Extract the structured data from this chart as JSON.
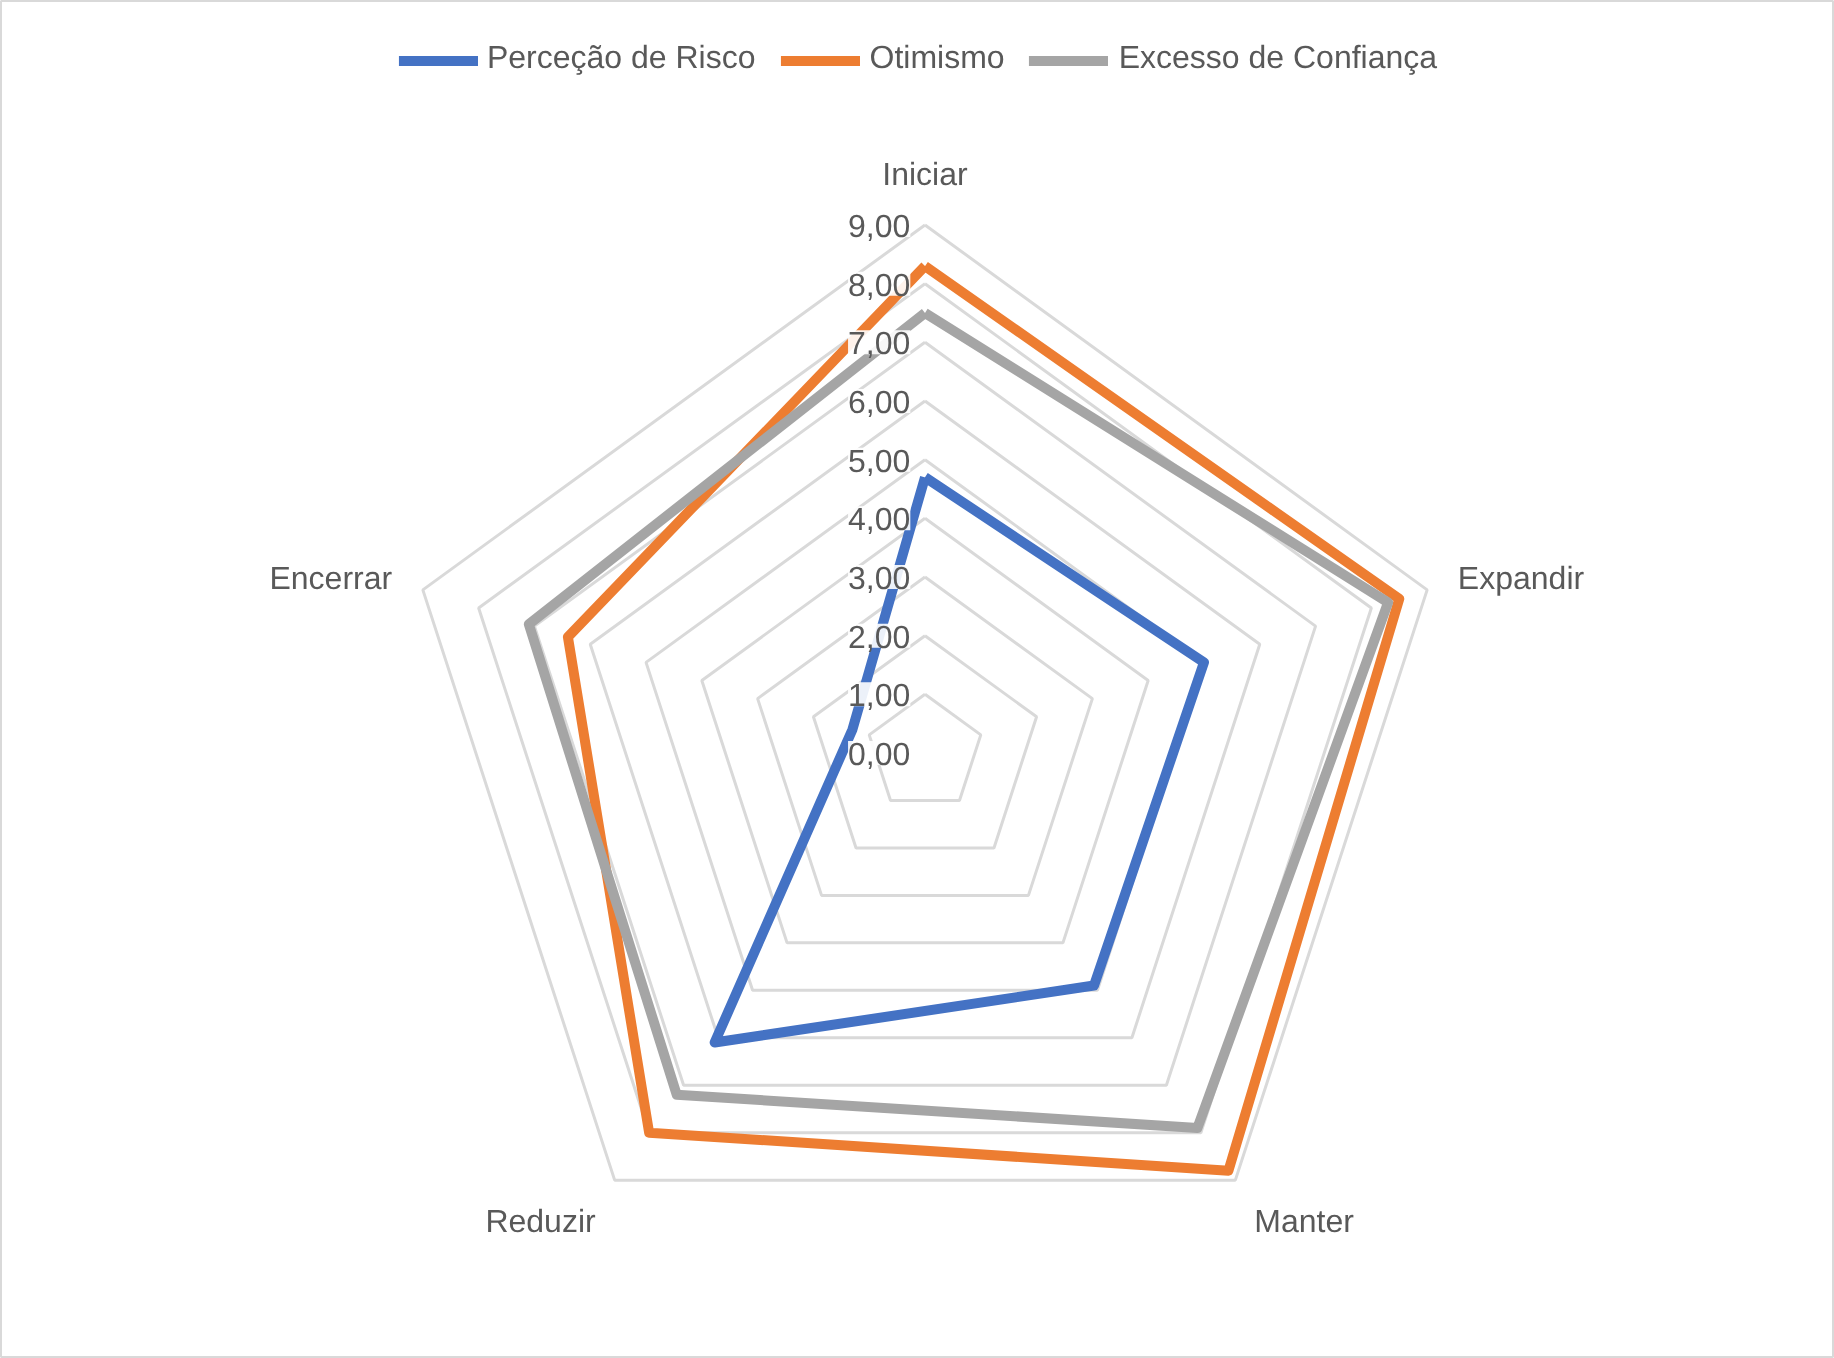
{
  "chart_data": {
    "type": "radar",
    "categories": [
      "Iniciar",
      "Expandir",
      "Manter",
      "Reduzir",
      "Encerrar"
    ],
    "series": [
      {
        "name": "Perceção de Risco",
        "color": "#4472c4",
        "values": [
          4.7,
          5.0,
          4.9,
          6.1,
          1.3
        ]
      },
      {
        "name": "Otimismo",
        "color": "#ed7d31",
        "values": [
          8.3,
          8.5,
          8.8,
          8.0,
          6.4
        ]
      },
      {
        "name": "Excesso de Confiança",
        "color": "#a5a5a5",
        "values": [
          7.5,
          8.3,
          7.9,
          7.2,
          7.1
        ]
      }
    ],
    "ylim": [
      0,
      9
    ],
    "yticks": [
      {
        "value": 0,
        "label": "0,00"
      },
      {
        "value": 1,
        "label": "1,00"
      },
      {
        "value": 2,
        "label": "2,00"
      },
      {
        "value": 3,
        "label": "3,00"
      },
      {
        "value": 4,
        "label": "4,00"
      },
      {
        "value": 5,
        "label": "5,00"
      },
      {
        "value": 6,
        "label": "6,00"
      },
      {
        "value": 7,
        "label": "7,00"
      },
      {
        "value": 8,
        "label": "8,00"
      },
      {
        "value": 9,
        "label": "9,00"
      }
    ],
    "grid": true,
    "legend": "top",
    "marker": "none"
  }
}
